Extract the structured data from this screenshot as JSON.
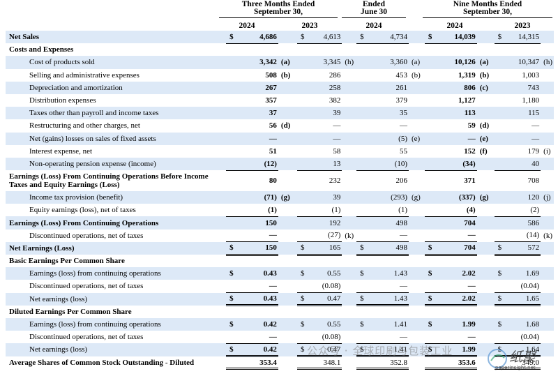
{
  "headers": {
    "group1": "Three Months Ended",
    "group1b": "September 30,",
    "group2": "Ended",
    "group2b": "June 30",
    "group3": "Nine Months Ended",
    "group3b": "September 30,",
    "years": [
      "2024",
      "2023",
      "2024",
      "2024",
      "2023"
    ]
  },
  "rows": [
    {
      "label": "Net Sales",
      "cells": [
        [
          "$",
          "4,686",
          ""
        ],
        [
          "$",
          "4,613",
          ""
        ],
        [
          "$",
          "4,734",
          ""
        ],
        [
          "$",
          "14,039",
          ""
        ],
        [
          "$",
          "14,315",
          ""
        ]
      ]
    },
    {
      "label": "Costs and Expenses",
      "cells": []
    },
    {
      "label": "Cost of products sold",
      "cells": [
        [
          "",
          "3,342",
          "(a)"
        ],
        [
          "",
          "3,345",
          "(h)"
        ],
        [
          "",
          "3,360",
          "(a)"
        ],
        [
          "",
          "10,126",
          "(a)"
        ],
        [
          "",
          "10,347",
          "(h)"
        ]
      ]
    },
    {
      "label": "Selling and administrative expenses",
      "cells": [
        [
          "",
          "508",
          "(b)"
        ],
        [
          "",
          "286",
          ""
        ],
        [
          "",
          "453",
          "(b)"
        ],
        [
          "",
          "1,319",
          "(b)"
        ],
        [
          "",
          "1,003",
          ""
        ]
      ]
    },
    {
      "label": "Depreciation and amortization",
      "cells": [
        [
          "",
          "267",
          ""
        ],
        [
          "",
          "258",
          ""
        ],
        [
          "",
          "261",
          ""
        ],
        [
          "",
          "806",
          "(c)"
        ],
        [
          "",
          "743",
          ""
        ]
      ]
    },
    {
      "label": "Distribution expenses",
      "cells": [
        [
          "",
          "357",
          ""
        ],
        [
          "",
          "382",
          ""
        ],
        [
          "",
          "379",
          ""
        ],
        [
          "",
          "1,127",
          ""
        ],
        [
          "",
          "1,180",
          ""
        ]
      ]
    },
    {
      "label": "Taxes other than payroll and income taxes",
      "cells": [
        [
          "",
          "37",
          ""
        ],
        [
          "",
          "39",
          ""
        ],
        [
          "",
          "35",
          ""
        ],
        [
          "",
          "113",
          ""
        ],
        [
          "",
          "115",
          ""
        ]
      ]
    },
    {
      "label": "Restructuring and other charges, net",
      "cells": [
        [
          "",
          "56",
          "(d)"
        ],
        [
          "",
          "—",
          ""
        ],
        [
          "",
          "—",
          ""
        ],
        [
          "",
          "59",
          "(d)"
        ],
        [
          "",
          "—",
          ""
        ]
      ]
    },
    {
      "label": "Net (gains) losses on sales of fixed assets",
      "cells": [
        [
          "",
          "—",
          ""
        ],
        [
          "",
          "—",
          ""
        ],
        [
          "",
          "(5)",
          "(e)"
        ],
        [
          "",
          "—",
          "(e)"
        ],
        [
          "",
          "—",
          ""
        ]
      ]
    },
    {
      "label": "Interest expense, net",
      "cells": [
        [
          "",
          "51",
          ""
        ],
        [
          "",
          "58",
          ""
        ],
        [
          "",
          "55",
          ""
        ],
        [
          "",
          "152",
          "(f)"
        ],
        [
          "",
          "179",
          "(i)"
        ]
      ]
    },
    {
      "label": "Non-operating pension expense (income)",
      "cells": [
        [
          "",
          "(12)",
          ""
        ],
        [
          "",
          "13",
          ""
        ],
        [
          "",
          "(10)",
          ""
        ],
        [
          "",
          "(34)",
          ""
        ],
        [
          "",
          "40",
          ""
        ]
      ]
    },
    {
      "label": "Earnings (Loss) From Continuing Operations Before Income Taxes and Equity Earnings (Loss)",
      "cells": [
        [
          "",
          "80",
          ""
        ],
        [
          "",
          "232",
          ""
        ],
        [
          "",
          "206",
          ""
        ],
        [
          "",
          "371",
          ""
        ],
        [
          "",
          "708",
          ""
        ]
      ]
    },
    {
      "label": "Income tax provision (benefit)",
      "cells": [
        [
          "",
          "(71)",
          "(g)"
        ],
        [
          "",
          "39",
          ""
        ],
        [
          "",
          "(293)",
          "(g)"
        ],
        [
          "",
          "(337)",
          "(g)"
        ],
        [
          "",
          "120",
          "(j)"
        ]
      ]
    },
    {
      "label": "Equity earnings (loss), net of taxes",
      "cells": [
        [
          "",
          "(1)",
          ""
        ],
        [
          "",
          "(1)",
          ""
        ],
        [
          "",
          "(1)",
          ""
        ],
        [
          "",
          "(4)",
          ""
        ],
        [
          "",
          "(2)",
          ""
        ]
      ]
    },
    {
      "label": "Earnings (Loss) From Continuing Operations",
      "cells": [
        [
          "",
          "150",
          ""
        ],
        [
          "",
          "192",
          ""
        ],
        [
          "",
          "498",
          ""
        ],
        [
          "",
          "704",
          ""
        ],
        [
          "",
          "586",
          ""
        ]
      ]
    },
    {
      "label": "Discontinued operations, net of taxes",
      "cells": [
        [
          "",
          "—",
          ""
        ],
        [
          "",
          "(27)",
          "(k)"
        ],
        [
          "",
          "—",
          ""
        ],
        [
          "",
          "—",
          ""
        ],
        [
          "",
          "(14)",
          "(k)"
        ]
      ]
    },
    {
      "label": "Net Earnings (Loss)",
      "cells": [
        [
          "$",
          "150",
          ""
        ],
        [
          "$",
          "165",
          ""
        ],
        [
          "$",
          "498",
          ""
        ],
        [
          "$",
          "704",
          ""
        ],
        [
          "$",
          "572",
          ""
        ]
      ]
    },
    {
      "label": "Basic Earnings Per Common Share",
      "cells": []
    },
    {
      "label": "Earnings (loss) from continuing operations",
      "cells": [
        [
          "$",
          "0.43",
          ""
        ],
        [
          "$",
          "0.55",
          ""
        ],
        [
          "$",
          "1.43",
          ""
        ],
        [
          "$",
          "2.02",
          ""
        ],
        [
          "$",
          "1.69",
          ""
        ]
      ]
    },
    {
      "label": "Discontinued operations, net of taxes",
      "cells": [
        [
          "",
          "—",
          ""
        ],
        [
          "",
          "(0.08)",
          ""
        ],
        [
          "",
          "—",
          ""
        ],
        [
          "",
          "—",
          ""
        ],
        [
          "",
          "(0.04)",
          ""
        ]
      ]
    },
    {
      "label": "Net earnings (loss)",
      "cells": [
        [
          "$",
          "0.43",
          ""
        ],
        [
          "$",
          "0.47",
          ""
        ],
        [
          "$",
          "1.43",
          ""
        ],
        [
          "$",
          "2.02",
          ""
        ],
        [
          "$",
          "1.65",
          ""
        ]
      ]
    },
    {
      "label": "Diluted Earnings Per Common Share",
      "cells": []
    },
    {
      "label": "Earnings (loss) from continuing operations",
      "cells": [
        [
          "$",
          "0.42",
          ""
        ],
        [
          "$",
          "0.55",
          ""
        ],
        [
          "$",
          "1.41",
          ""
        ],
        [
          "$",
          "1.99",
          ""
        ],
        [
          "$",
          "1.68",
          ""
        ]
      ]
    },
    {
      "label": "Discontinued operations, net of taxes",
      "cells": [
        [
          "",
          "—",
          ""
        ],
        [
          "",
          "(0.08)",
          ""
        ],
        [
          "",
          "—",
          ""
        ],
        [
          "",
          "—",
          ""
        ],
        [
          "",
          "(0.04)",
          ""
        ]
      ]
    },
    {
      "label": "Net earnings (loss)",
      "cells": [
        [
          "$",
          "0.42",
          ""
        ],
        [
          "$",
          "0.47",
          ""
        ],
        [
          "$",
          "1.41",
          ""
        ],
        [
          "$",
          "1.99",
          ""
        ],
        [
          "$",
          "1.64",
          ""
        ]
      ]
    },
    {
      "label": "Average Shares of Common Stock Outstanding - Diluted",
      "cells": [
        [
          "",
          "353.4",
          ""
        ],
        [
          "",
          "348.1",
          ""
        ],
        [
          "",
          "352.8",
          ""
        ],
        [
          "",
          "353.6",
          ""
        ],
        [
          "",
          "349.0",
          ""
        ]
      ]
    }
  ],
  "watermark": {
    "text": "公众号 · 全球印刷与包装工业",
    "logo_text": "纸聚",
    "logo_sub": "paperinsight.net"
  }
}
